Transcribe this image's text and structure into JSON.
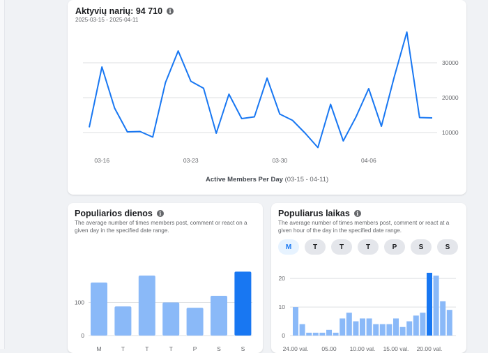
{
  "members_card": {
    "title": "Aktyvių narių: 94 710",
    "date_range": "2025-03-15 - 2025-04-11",
    "footer_label": "Active Members Per Day",
    "footer_range": "(03-15 - 04-11)"
  },
  "days_card": {
    "title": "Populiarios dienos",
    "description": "The average number of times members post, comment or react on a given day in the specified date range."
  },
  "hours_card": {
    "title": "Populiarus laikas",
    "description": "The average number of times members post, comment or react at a given hour of the day in the specified date range.",
    "day_toggles": [
      "M",
      "T",
      "T",
      "T",
      "P",
      "S",
      "S"
    ],
    "active_day_index": 0
  },
  "colors": {
    "accent": "#1877f2",
    "bar_light": "#8ab9f8",
    "grid": "#dddfe2"
  },
  "chart_data": [
    {
      "type": "line",
      "ylabel": "",
      "xlabel": "",
      "ylim": [
        4000,
        40000
      ],
      "y_ticks": [
        10000,
        20000,
        30000
      ],
      "y_tick_labels": [
        "10000",
        "20000",
        "30000"
      ],
      "x_tick_labels": [
        "03-16",
        "03-23",
        "03-30",
        "04-06"
      ],
      "x_tick_indices": [
        1,
        8,
        15,
        22
      ],
      "grid": true,
      "series": [
        {
          "values": [
            11500,
            28800,
            17000,
            10200,
            10300,
            8700,
            24300,
            33400,
            24700,
            22700,
            9800,
            21000,
            14000,
            14500,
            25600,
            15300,
            13500,
            9800,
            5700,
            18100,
            7600,
            14500,
            22600,
            11800,
            25800,
            38800,
            14300,
            14200
          ]
        }
      ]
    },
    {
      "type": "bar",
      "categories": [
        "M",
        "T",
        "T",
        "T",
        "P",
        "S",
        "S"
      ],
      "values": [
        160,
        88,
        181,
        100,
        84,
        120,
        193
      ],
      "highlight_index": 6,
      "ylim": [
        0,
        200
      ],
      "y_ticks": [
        0,
        100
      ],
      "y_tick_labels": [
        "0",
        "100"
      ]
    },
    {
      "type": "bar",
      "values": [
        10,
        4,
        1,
        1,
        1,
        2,
        1,
        6,
        8,
        5,
        6,
        6,
        4,
        4,
        4,
        6,
        3,
        5,
        7,
        8,
        22,
        21,
        12,
        9
      ],
      "highlight_index": 20,
      "x_tick_labels": [
        "24.00 val.",
        "05.00",
        "10.00 val.",
        "15.00 val.",
        "20.00 val."
      ],
      "x_tick_indices": [
        0,
        5,
        10,
        15,
        20
      ],
      "ylim": [
        0,
        22
      ],
      "y_ticks": [
        0,
        10,
        20
      ],
      "y_tick_labels": [
        "0",
        "10",
        "20"
      ]
    }
  ]
}
